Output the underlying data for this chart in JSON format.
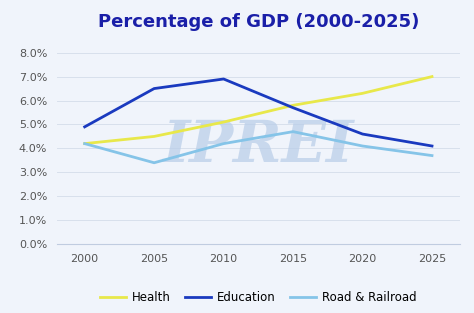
{
  "title": "Percentage of GDP (2000-2025)",
  "years": [
    2000,
    2005,
    2010,
    2015,
    2020,
    2025
  ],
  "health": [
    0.042,
    0.045,
    0.051,
    0.058,
    0.063,
    0.07
  ],
  "education": [
    0.049,
    0.065,
    0.069,
    0.057,
    0.046,
    0.041
  ],
  "road_railroad": [
    0.042,
    0.034,
    0.042,
    0.047,
    0.041,
    0.037
  ],
  "health_color": "#e8e84a",
  "education_color": "#1a3abf",
  "road_color": "#85c4e8",
  "ylim": [
    0.0,
    0.085
  ],
  "yticks": [
    0.0,
    0.01,
    0.02,
    0.03,
    0.04,
    0.05,
    0.06,
    0.07,
    0.08
  ],
  "background_color": "#f0f4fb",
  "plot_bg_color": "#f0f4fb",
  "title_color": "#1a1fa8",
  "title_fontsize": 13,
  "legend_labels": [
    "Health",
    "Education",
    "Road & Railroad"
  ],
  "watermark": "IPREI",
  "watermark_color": "#b8cde8",
  "grid_color": "#d8e0ec",
  "tick_color": "#555555",
  "tick_fontsize": 8
}
